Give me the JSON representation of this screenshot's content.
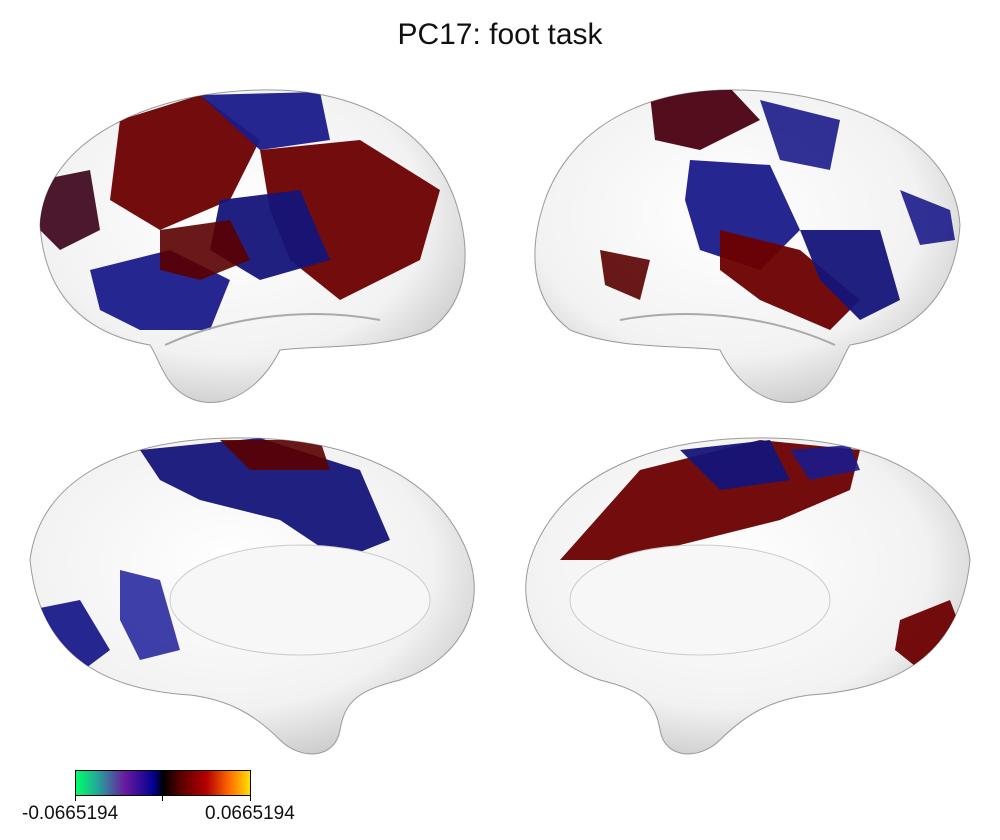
{
  "title": "PC17: foot task",
  "views": [
    {
      "hemisphere": "left",
      "view": "lateral"
    },
    {
      "hemisphere": "right",
      "view": "lateral"
    },
    {
      "hemisphere": "left",
      "view": "medial"
    },
    {
      "hemisphere": "right",
      "view": "medial"
    }
  ],
  "colorbar": {
    "min_label": "-0.0665194",
    "max_label": "0.0665194",
    "colors": [
      "#00ff66",
      "#6a1aa0",
      "#000090",
      "#000000",
      "#b40000",
      "#ffe000"
    ]
  }
}
